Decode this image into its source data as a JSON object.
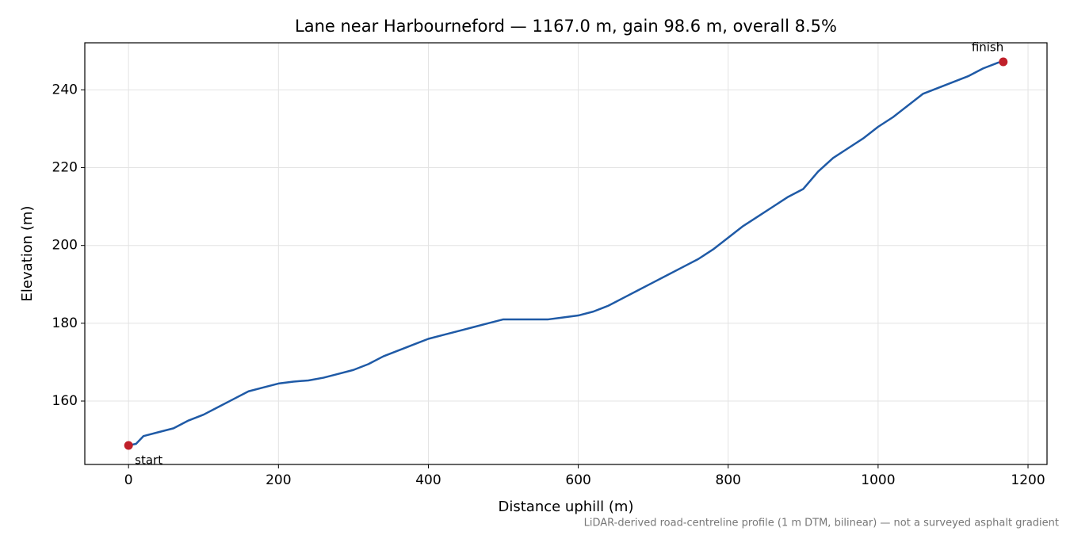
{
  "chart_data": {
    "type": "line",
    "title": "Lane near Harbourneford — 1167.0 m, gain 98.6 m, overall 8.5%",
    "xlabel": "Distance uphill (m)",
    "ylabel": "Elevation (m)",
    "note": "LiDAR-derived road-centreline profile (1 m DTM, bilinear) — not a surveyed asphalt gradient",
    "x": [
      0,
      10,
      20,
      40,
      60,
      80,
      100,
      120,
      140,
      160,
      180,
      200,
      220,
      240,
      260,
      280,
      300,
      320,
      340,
      360,
      380,
      400,
      420,
      440,
      460,
      480,
      500,
      520,
      540,
      560,
      580,
      600,
      620,
      640,
      660,
      680,
      700,
      720,
      740,
      760,
      780,
      800,
      820,
      840,
      860,
      880,
      900,
      920,
      940,
      960,
      980,
      1000,
      1020,
      1040,
      1060,
      1080,
      1100,
      1120,
      1140,
      1160,
      1167
    ],
    "series": [
      {
        "color": "#1f5aa6",
        "values": [
          148.6,
          149,
          151,
          152,
          153,
          155,
          156.5,
          158.5,
          160.5,
          162.5,
          163.5,
          164.5,
          165,
          165.3,
          166,
          167,
          168,
          169.5,
          171.5,
          173,
          174.5,
          176,
          177,
          178,
          179,
          180,
          181,
          181,
          181,
          181,
          181.5,
          182,
          183,
          184.5,
          186.5,
          188.5,
          190.5,
          192.5,
          194.5,
          196.5,
          199,
          202,
          205,
          207.5,
          210,
          212.5,
          214.5,
          219,
          222.5,
          225,
          227.5,
          230.5,
          233,
          236,
          239,
          240.5,
          242,
          243.5,
          245.5,
          247,
          247.2
        ]
      }
    ],
    "endpoints": {
      "x": [
        0,
        1167
      ],
      "y": [
        148.6,
        247.2
      ],
      "labels": [
        "start",
        "finish"
      ],
      "color": "#c0202a"
    },
    "xlim": [
      -58.35,
      1225.35
    ],
    "ylim": [
      143.7,
      252.1
    ],
    "xticks": [
      0,
      200,
      400,
      600,
      800,
      1000,
      1200
    ],
    "yticks": [
      160,
      180,
      200,
      220,
      240
    ],
    "grid": true
  }
}
